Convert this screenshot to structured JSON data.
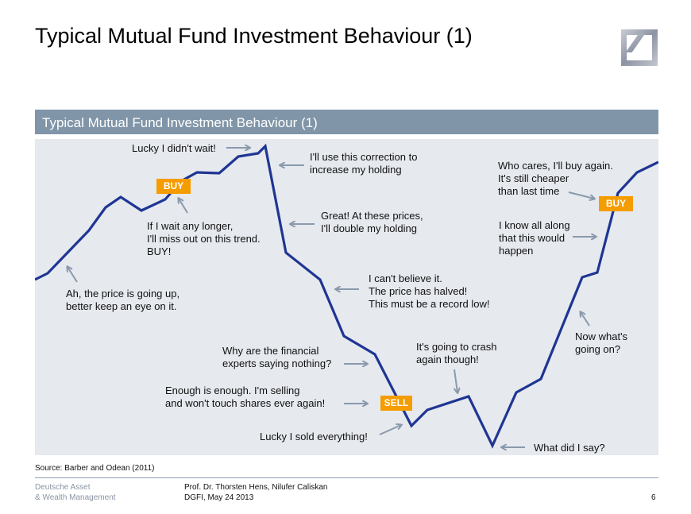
{
  "slide": {
    "title": "Typical Mutual Fund Investment Behaviour (1)",
    "logo": "Deutsche Bank logo"
  },
  "panel": {
    "title": "Typical Mutual Fund Investment Behaviour (1)",
    "line_color": "#1f3594",
    "arrow_color": "#8a99ac",
    "tag_color": "#f59c00",
    "annotations": [
      "Lucky I didn't wait!",
      "I'll use this correction to\nincrease my holding",
      "Great! At these prices,\nI'll double my holding",
      "If I wait any longer,\nI'll miss out on this trend.\nBUY!",
      "Ah, the price is going up,\nbetter keep an eye on it.",
      "I can't believe it.\nThe price has halved!\nThis must be a record low!",
      "Why are the financial\nexperts saying nothing?",
      "Enough is enough. I'm selling\nand won't touch shares ever again!",
      "Lucky I sold everything!",
      "It's going to crash\nagain though!",
      "What did I say?",
      "Now what's\ngoing on?",
      "I know all along\nthat this would\nhappen",
      "Who cares, I'll buy again.\nIt's still cheaper\nthan last time"
    ],
    "tags": {
      "buy1": "BUY",
      "sell": "SELL",
      "buy2": "BUY"
    }
  },
  "source": "Source: Barber and Odean (2011)",
  "footer": {
    "org": "Deutsche Asset\n& Wealth Management",
    "authors": "Prof. Dr. Thorsten Hens, Nilufer Caliskan\nDGFI, May 24 2013",
    "page": "6"
  }
}
